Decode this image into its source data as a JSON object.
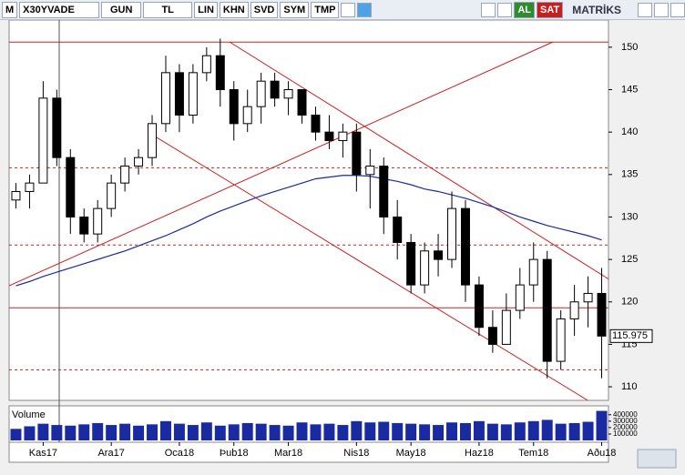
{
  "toolbar": {
    "items": [
      "M",
      "X30YVADE",
      "GUN",
      "TL",
      "LIN",
      "KHN",
      "SVD",
      "SYM",
      "TMP"
    ],
    "buy": "AL",
    "sell": "SAT",
    "brand": "MATRİKS"
  },
  "chart_data": {
    "type": "candlestick",
    "categories": [
      null,
      null,
      "Kas17",
      null,
      null,
      null,
      null,
      "Ara17",
      null,
      null,
      null,
      null,
      "Oca18",
      null,
      null,
      null,
      "Þub18",
      null,
      null,
      null,
      "Mar18",
      null,
      null,
      null,
      null,
      "Nis18",
      null,
      null,
      null,
      "May18",
      null,
      null,
      null,
      null,
      "Haz18",
      null,
      null,
      null,
      "Tem18",
      null,
      null,
      null,
      null,
      "Aðu18"
    ],
    "open": [
      132,
      133,
      134,
      144,
      137,
      130,
      128,
      131,
      134,
      136,
      137,
      141,
      147,
      142,
      147,
      149,
      145,
      141,
      143,
      146,
      144,
      145,
      142,
      140,
      139,
      140,
      135,
      136,
      130,
      127,
      122,
      126,
      125,
      131,
      122,
      117,
      115,
      119,
      122,
      125,
      113,
      118,
      120,
      121
    ],
    "high": [
      134,
      135,
      146,
      145,
      138,
      131,
      132,
      135,
      137,
      138,
      142,
      149,
      148,
      148,
      150,
      151,
      146,
      145,
      147,
      147,
      146,
      145,
      143,
      142,
      141,
      141,
      138,
      137,
      132,
      128,
      127,
      128,
      133,
      132,
      123,
      119,
      121,
      124,
      127,
      126,
      119,
      122,
      123,
      124
    ],
    "low": [
      131,
      131,
      134,
      136,
      128,
      127,
      127,
      130,
      133,
      135,
      136,
      140,
      140,
      141,
      146,
      143,
      139,
      140,
      141,
      143,
      142,
      141,
      139,
      138,
      137,
      133,
      131,
      128,
      125,
      121,
      121,
      123,
      124,
      120,
      116,
      114,
      115,
      118,
      120,
      111,
      112,
      116,
      117,
      111
    ],
    "close": [
      133,
      134,
      144,
      137,
      130,
      128,
      131,
      134,
      136,
      137,
      141,
      147,
      142,
      147,
      149,
      145,
      141,
      143,
      146,
      144,
      145,
      142,
      140,
      139,
      140,
      135,
      136,
      130,
      127,
      122,
      126,
      125,
      131,
      122,
      117,
      115,
      119,
      122,
      125,
      113,
      118,
      120,
      121,
      115.975
    ],
    "ma": [
      121.9,
      122.4,
      123,
      123.5,
      124,
      124.5,
      125,
      125.5,
      126,
      126.6,
      127.2,
      127.8,
      128.5,
      129.2,
      130,
      130.7,
      131.3,
      131.9,
      132.5,
      133,
      133.5,
      134,
      134.5,
      134.7,
      134.9,
      134.9,
      134.8,
      134.5,
      134.2,
      133.8,
      133.3,
      133,
      132.6,
      132.2,
      131.7,
      131.2,
      130.6,
      130,
      129.5,
      129,
      128.6,
      128.2,
      127.8,
      127.3
    ],
    "ma_color": "#1a2aa0",
    "candle_color": "#000000",
    "line_color": "#cc2222",
    "ylim": [
      108.4,
      153.2
    ],
    "yticks": [
      110,
      115,
      120,
      125,
      130,
      135,
      140,
      145,
      150
    ],
    "hlines": [
      {
        "value": 150.6,
        "style": "solid"
      },
      {
        "value": 135.8,
        "style": "dashed"
      },
      {
        "value": 126.7,
        "style": "dashed"
      },
      {
        "value": 119.3,
        "style": "solid"
      },
      {
        "value": 112,
        "style": "dashed"
      }
    ],
    "trendlines": [
      [
        [
          -0.5,
          121.9
        ],
        [
          39.4,
          150.6
        ]
      ],
      [
        [
          15.7,
          150.6
        ],
        [
          44.3,
          121.9
        ]
      ],
      [
        [
          10.1,
          139.6
        ],
        [
          41.98,
          108.4
        ]
      ]
    ],
    "volume_title": "Volume",
    "volume": [
      180000,
      220000,
      260000,
      240000,
      230000,
      250000,
      270000,
      240000,
      260000,
      230000,
      250000,
      300000,
      260000,
      240000,
      280000,
      230000,
      250000,
      270000,
      260000,
      240000,
      230000,
      280000,
      250000,
      260000,
      240000,
      300000,
      280000,
      290000,
      270000,
      260000,
      250000,
      240000,
      280000,
      270000,
      300000,
      260000,
      250000,
      280000,
      300000,
      320000,
      260000,
      270000,
      290000,
      460000
    ],
    "volume_color": "#1a2aa0",
    "volume_ylim": [
      0,
      510000
    ],
    "volume_yticks": [
      100000,
      200000,
      300000,
      400000
    ]
  }
}
